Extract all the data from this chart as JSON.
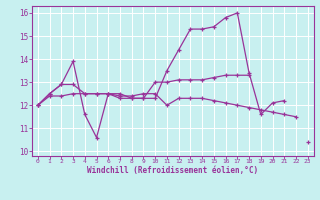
{
  "xlabel": "Windchill (Refroidissement éolien,°C)",
  "bg_color": "#c8f0f0",
  "line_color": "#993399",
  "grid_color": "#ffffff",
  "xlim": [
    -0.5,
    23.5
  ],
  "ylim": [
    9.8,
    16.3
  ],
  "xticks": [
    0,
    1,
    2,
    3,
    4,
    5,
    6,
    7,
    8,
    9,
    10,
    11,
    12,
    13,
    14,
    15,
    16,
    17,
    18,
    19,
    20,
    21,
    22,
    23
  ],
  "yticks": [
    10,
    11,
    12,
    13,
    14,
    15,
    16
  ],
  "series": [
    [
      12.0,
      12.5,
      12.9,
      13.9,
      11.6,
      10.6,
      12.5,
      12.5,
      12.3,
      12.3,
      12.3,
      13.5,
      14.4,
      15.3,
      15.3,
      15.4,
      15.8,
      16.0,
      13.4,
      11.6,
      12.1,
      12.2,
      null,
      10.4
    ],
    [
      12.0,
      12.5,
      12.9,
      12.9,
      12.5,
      12.5,
      12.5,
      12.3,
      12.3,
      12.3,
      13.0,
      13.0,
      13.1,
      13.1,
      13.1,
      13.2,
      13.3,
      13.3,
      13.3,
      null,
      null,
      null,
      null,
      null
    ],
    [
      12.0,
      12.4,
      12.4,
      12.5,
      12.5,
      12.5,
      12.5,
      12.4,
      12.4,
      12.5,
      12.5,
      12.0,
      12.3,
      12.3,
      12.3,
      12.2,
      12.1,
      12.0,
      11.9,
      11.8,
      11.7,
      11.6,
      11.5,
      null
    ]
  ]
}
